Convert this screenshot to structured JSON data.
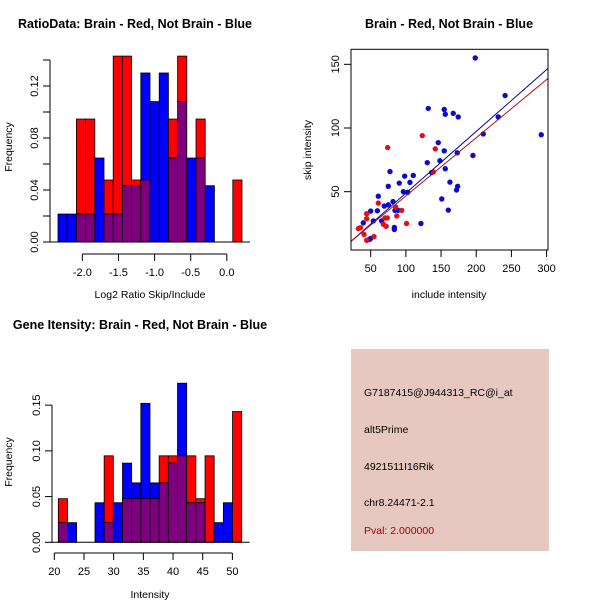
{
  "colors": {
    "brain": "#ff0000",
    "not_brain": "#0000ff",
    "overlap": "#7f007f",
    "brain_line": "#aa1111",
    "not_brain_line": "#00008b",
    "panel_bg": "#e6c8c0",
    "pval_text": "#aa0000"
  },
  "chart_data": [
    {
      "id": "ratio-hist",
      "type": "bar",
      "subtype": "overlaid-histogram",
      "title": "RatioData: Brain - Red, Not Brain - Blue",
      "xlabel": "Log2 Ratio Skip/Include",
      "ylabel": "Frequency",
      "xlim": [
        -2.337,
        0.21
      ],
      "ylim": [
        0,
        0.14
      ],
      "bin_start": -2.337,
      "bin_width": 0.1274,
      "xticks": [
        -2.0,
        -1.5,
        -1.0,
        -0.5,
        0.0
      ],
      "xtick_labels": [
        "-2.0",
        "-1.5",
        "-1.0",
        "-0.5",
        "0.0"
      ],
      "yticks": [
        0.0,
        0.02,
        0.04,
        0.06,
        0.08,
        0.1,
        0.12,
        0.14
      ],
      "ytick_labels": [
        "0.00",
        "",
        "0.04",
        "",
        "0.08",
        "",
        "0.12",
        ""
      ],
      "series": [
        {
          "name": "Brain",
          "color": "red",
          "values": [
            0,
            0,
            0.0946,
            0.0946,
            0,
            0.0477,
            0.143,
            0.143,
            0.0477,
            0.0477,
            0,
            0,
            0.0946,
            0.143,
            0,
            0.0946,
            0,
            0,
            0,
            0.0477
          ]
        },
        {
          "name": "Not Brain",
          "color": "blue",
          "values": [
            0.0215,
            0.0215,
            0.0215,
            0.0215,
            0.0646,
            0.0215,
            0.0215,
            0.0433,
            0.0433,
            0.13,
            0.108,
            0.13,
            0.0646,
            0.108,
            0.0646,
            0.0646,
            0.0433,
            0,
            0,
            0
          ]
        }
      ]
    },
    {
      "id": "intensity-scatter",
      "type": "scatter",
      "title": "Brain - Red, Not Brain - Blue",
      "xlabel": "include intensity",
      "ylabel": "skip intensity",
      "xlim": [
        22,
        302
      ],
      "ylim": [
        4.2,
        161.8
      ],
      "xticks": [
        50,
        100,
        150,
        200,
        250,
        300
      ],
      "xtick_labels": [
        "50",
        "100",
        "150",
        "200",
        "250",
        "300"
      ],
      "yticks": [
        50,
        100,
        150
      ],
      "ytick_labels": [
        "50",
        "100",
        "150"
      ],
      "series": [
        {
          "name": "Not Brain",
          "color": "blue",
          "points": [
            [
              198.6,
              155
            ],
            [
              241,
              125.5
            ],
            [
              131.8,
              115.4
            ],
            [
              154.5,
              114.6
            ],
            [
              156,
              110.8
            ],
            [
              167.3,
              111.5
            ],
            [
              174.4,
              108.7
            ],
            [
              231.3,
              108.7
            ],
            [
              210,
              95.3
            ],
            [
              292.4,
              94.7
            ],
            [
              146,
              88.5
            ],
            [
              154.5,
              82.1
            ],
            [
              173,
              80.5
            ],
            [
              195.3,
              78.4
            ],
            [
              130.4,
              72.8
            ],
            [
              148.4,
              74.3
            ],
            [
              77.4,
              65.8
            ],
            [
              98.3,
              62.2
            ],
            [
              110.5,
              62.7
            ],
            [
              105.8,
              57.3
            ],
            [
              90.6,
              56.7
            ],
            [
              75,
              54.2
            ],
            [
              136.6,
              65
            ],
            [
              156,
              68
            ],
            [
              162.6,
              57.5
            ],
            [
              173.6,
              54.2
            ],
            [
              172,
              51.3
            ],
            [
              151,
              44.3
            ],
            [
              160.3,
              35.5
            ],
            [
              96.4,
              50
            ],
            [
              102.6,
              49.5
            ],
            [
              60.8,
              46.4
            ],
            [
              75,
              39.7
            ],
            [
              81.7,
              42.2
            ],
            [
              69.3,
              38.7
            ],
            [
              84.5,
              35.3
            ],
            [
              89,
              35.3
            ],
            [
              59.5,
              35
            ],
            [
              50,
              34.8
            ],
            [
              39.5,
              25.5
            ],
            [
              53.7,
              27
            ],
            [
              65.6,
              27
            ],
            [
              121.4,
              25
            ],
            [
              83.6,
              21.9
            ],
            [
              83.6,
              20.3
            ],
            [
              50,
              13.3
            ],
            [
              48,
              12.5
            ]
          ]
        },
        {
          "name": "Brain",
          "color": "red",
          "points": [
            [
              123.3,
              94
            ],
            [
              74.1,
              84.6
            ],
            [
              141.8,
              83.6
            ],
            [
              139,
              65.5
            ],
            [
              60.8,
              41
            ],
            [
              85.5,
              37.9
            ],
            [
              94,
              35.3
            ],
            [
              44.3,
              32.7
            ],
            [
              44.3,
              28.8
            ],
            [
              70.3,
              29.4
            ],
            [
              73.6,
              29.4
            ],
            [
              68,
              24.4
            ],
            [
              72,
              22.8
            ],
            [
              87,
              30.9
            ],
            [
              101,
              25
            ],
            [
              32.4,
              21
            ],
            [
              35.4,
              21.7
            ],
            [
              40.5,
              16.4
            ],
            [
              54.7,
              14.7
            ],
            [
              44.3,
              11.8
            ]
          ]
        }
      ],
      "fit_lines": [
        {
          "name": "Not Brain fit",
          "color": "not_brain_line",
          "intercept": 0.33,
          "slope": 0.485
        },
        {
          "name": "Brain fit",
          "color": "brain_line",
          "intercept": 0.95,
          "slope": 0.457
        }
      ]
    },
    {
      "id": "gene-hist",
      "type": "bar",
      "subtype": "overlaid-histogram",
      "title": "Gene Itensity: Brain - Red, Not Brain - Blue",
      "xlabel": "Intensity",
      "ylabel": "Frequency",
      "xlim": [
        20.67,
        51.57
      ],
      "ylim": [
        0,
        0.175
      ],
      "bin_start": 20.67,
      "bin_width": 1.545,
      "xticks": [
        20,
        25,
        30,
        35,
        40,
        45,
        50
      ],
      "xtick_labels": [
        "20",
        "25",
        "30",
        "35",
        "40",
        "45",
        "50"
      ],
      "yticks": [
        0.0,
        0.05,
        0.1,
        0.15
      ],
      "ytick_labels": [
        "0.00",
        "0.05",
        "0.10",
        "0.15"
      ],
      "series": [
        {
          "name": "Brain",
          "color": "red",
          "values": [
            0.0477,
            0,
            0,
            0,
            0,
            0.0946,
            0,
            0.0477,
            0.0477,
            0.0477,
            0.0477,
            0.0946,
            0.0946,
            0.0946,
            0.0946,
            0.0477,
            0.0946,
            0,
            0,
            0.143
          ]
        },
        {
          "name": "Not Brain",
          "color": "blue",
          "values": [
            0.0215,
            0.0215,
            0,
            0,
            0.0433,
            0.0215,
            0.0433,
            0.0866,
            0.065,
            0.152,
            0.065,
            0.065,
            0.0866,
            0.174,
            0.0433,
            0.0433,
            0,
            0.0215,
            0.0433,
            0
          ]
        }
      ]
    }
  ],
  "info": {
    "probe_id": "G7187415@J944313_RC@i_at",
    "event_type": "alt5Prime",
    "gene": "4921511I16Rik",
    "location": "chr8.24471-2.1",
    "pval": "Pval: 2.000000"
  }
}
